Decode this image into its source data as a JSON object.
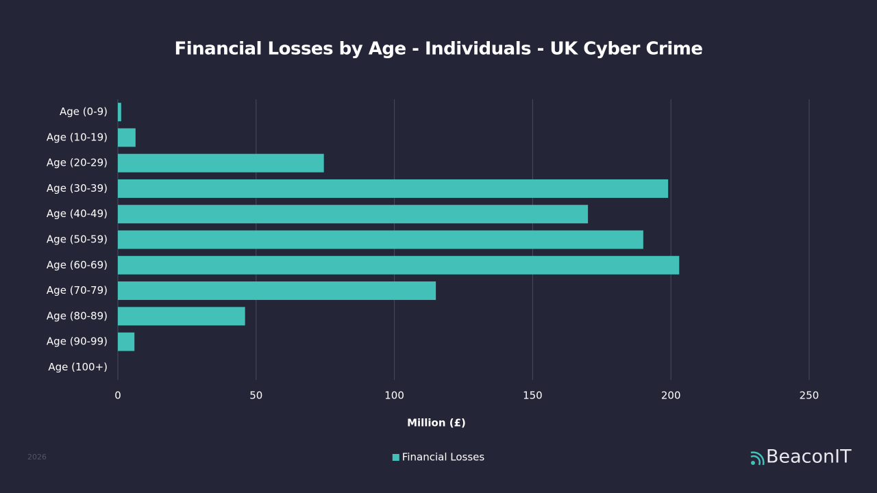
{
  "chart_data": {
    "type": "barh",
    "title": "Financial Losses by Age - Individuals - UK Cyber Crime",
    "categories": [
      "Age (0-9)",
      "Age (10-19)",
      "Age (20-29)",
      "Age (30-39)",
      "Age (40-49)",
      "Age (50-59)",
      "Age (60-69)",
      "Age (70-79)",
      "Age (80-89)",
      "Age (90-99)",
      "Age (100+)"
    ],
    "series": [
      {
        "name": "Financial Losses",
        "color": "#43c0b8",
        "values": [
          1.2,
          6.4,
          74.5,
          199,
          170,
          190,
          203,
          115,
          46,
          6,
          0
        ]
      }
    ],
    "xlabel": "Million (£)",
    "xlim": [
      0,
      250
    ],
    "xticks": [
      0,
      50,
      100,
      150,
      200,
      250
    ],
    "grid": true,
    "legend": "bottom"
  },
  "footer": {
    "year": "2026",
    "brand": "BeaconIT"
  }
}
